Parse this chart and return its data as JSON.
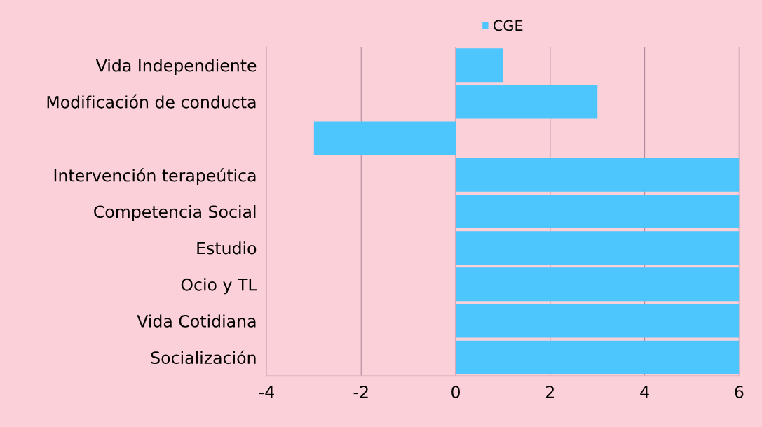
{
  "chart_data": {
    "type": "bar",
    "orientation": "horizontal",
    "categories": [
      "Vida Independiente",
      "Modificación de conducta",
      null,
      "Intervención terapeútica",
      "Competencia Social",
      "Estudio",
      "Ocio y TL",
      "Vida Cotidiana",
      "Socialización"
    ],
    "series": [
      {
        "name": "CGE",
        "color": "#4cc6fc",
        "values": [
          1,
          3,
          -3,
          6,
          6,
          6,
          6,
          6,
          6
        ]
      }
    ],
    "xlim": [
      -4,
      6
    ],
    "xticks": [
      -4,
      -2,
      0,
      2,
      4,
      6
    ],
    "grid": "x",
    "legend": "top"
  }
}
